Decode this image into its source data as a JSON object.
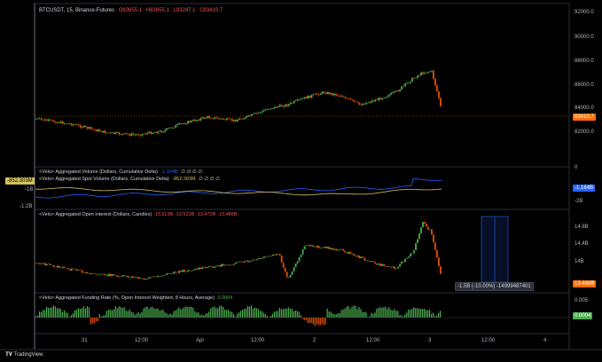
{
  "header": {
    "symbol_line": "BTCUSDT, 15, Binance-Futures",
    "ohlc": [
      {
        "k": "O",
        "v": "83655.1"
      },
      {
        "k": "H",
        "v": "83655.1"
      },
      {
        "k": "L",
        "v": "83287.1"
      },
      {
        "k": "C",
        "v": "83410.7"
      }
    ]
  },
  "price_axis": [
    "92000.0",
    "90000.0",
    "88000.0",
    "86000.0",
    "84000.0",
    "82000.0"
  ],
  "price_last": "83410.7",
  "volume_pane": {
    "title": "<Velo> Aggregated Volume (Dollars, Cumulative Delta)",
    "value": "-1.164B",
    "title2": "<Velo> Aggregated Spot Volume (Dollars, Cumulative Delta)",
    "value2": "-852.303M",
    "dots": "∅ ∅ ∅ ∅",
    "axis": [
      "0",
      "-2B"
    ],
    "left_axis": [
      "-1B",
      "-1.2B"
    ],
    "left_badge": "-852.303M",
    "right_badge": "-1.164B"
  },
  "oi_pane": {
    "title": "<Velo> Aggregated Open Interest (Dollars, Candles)",
    "values": [
      "13.513B",
      "13.523B",
      "13.472B",
      "13.486B"
    ],
    "axis": [
      "14.8B",
      "14.4B",
      "14B"
    ],
    "badge": "13.486B",
    "measure": "-1.5B (-10.00%) -14999487401"
  },
  "funding_pane": {
    "title": "<Velo> Aggregated Funding Rate (%, Open Interest Weighted, 8 Hours, Average)",
    "value": "0.0004",
    "axis": [
      "0.005"
    ],
    "badge": "0.0004"
  },
  "time_axis": [
    "31",
    "12:00",
    "Apr",
    "12:00",
    "2",
    "12:00",
    "3",
    "12:00",
    "4"
  ],
  "brand": "TradingView",
  "colors": {
    "up": "#26a69a",
    "down": "#ef5350",
    "candle_up": "#4caf50",
    "candle_down": "#e65100",
    "spot_line": "#d4c15a",
    "agg_line": "#2962ff",
    "price_badge": "#ff6d00",
    "funding_up": "#4caf50",
    "funding_down": "#e65100"
  }
}
